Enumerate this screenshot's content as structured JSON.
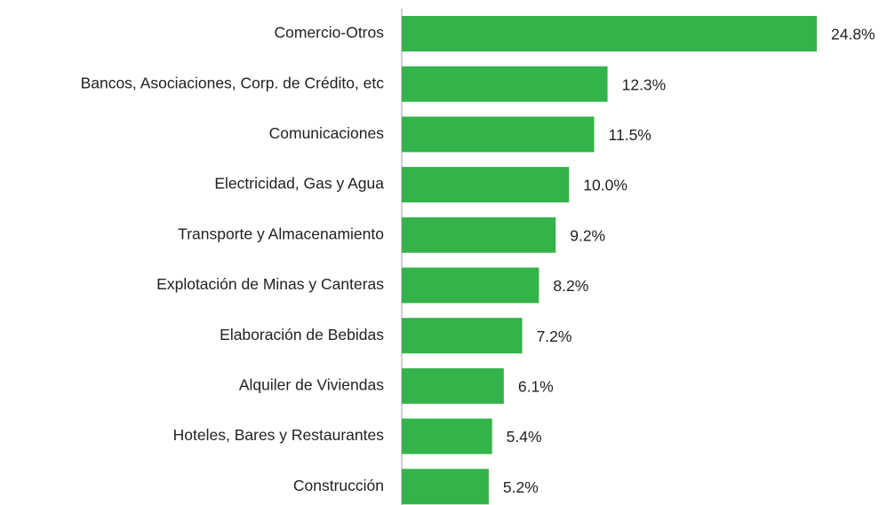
{
  "chart_data": {
    "type": "bar",
    "orientation": "horizontal",
    "categories": [
      "Comercio-Otros",
      "Bancos, Asociaciones, Corp. de Crédito, etc",
      "Comunicaciones",
      "Electricidad, Gas y Agua",
      "Transporte y Almacenamiento",
      "Explotación de Minas y Canteras",
      "Elaboración de Bebidas",
      "Alquiler de Viviendas",
      "Hoteles, Bares y Restaurantes",
      "Construcción"
    ],
    "values": [
      24.8,
      12.3,
      11.5,
      10.0,
      9.2,
      8.2,
      7.2,
      6.1,
      5.4,
      5.2
    ],
    "value_labels": [
      "24.8%",
      "12.3%",
      "11.5%",
      "10.0%",
      "9.2%",
      "8.2%",
      "7.2%",
      "6.1%",
      "5.4%",
      "5.2%"
    ],
    "color": "#34b34a"
  }
}
